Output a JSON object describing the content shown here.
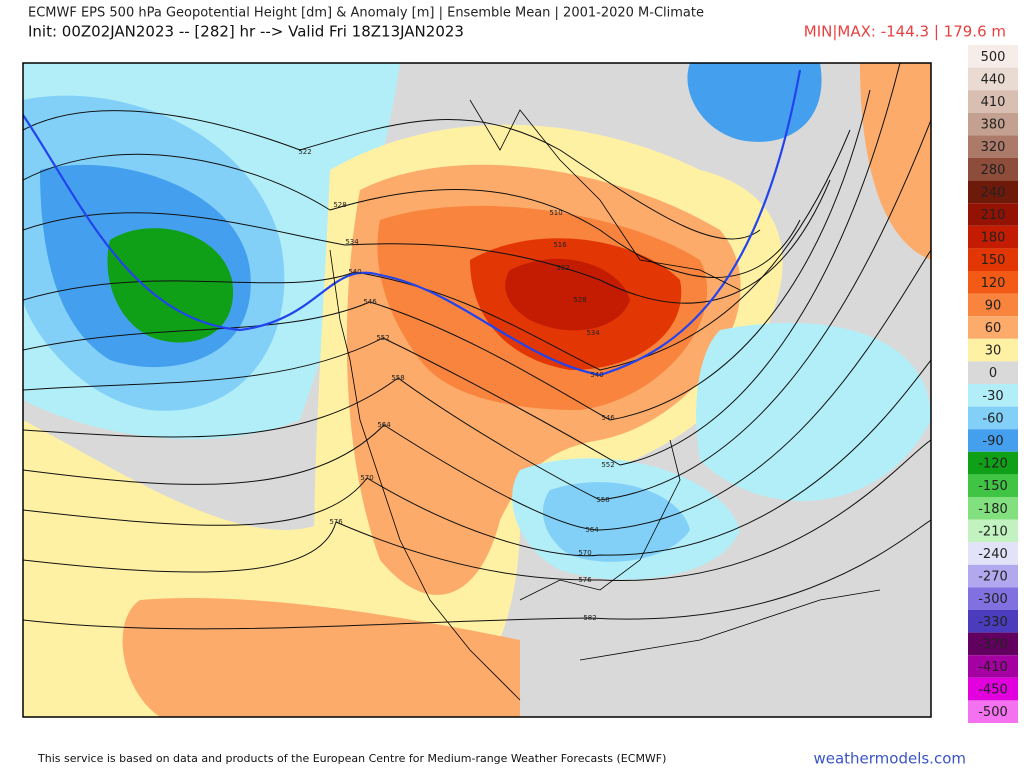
{
  "header": {
    "title": "ECMWF EPS 500 hPa Geopotential Height [dm] & Anomaly [m] | Ensemble Mean | 2001-2020 M-Climate",
    "init": "Init: 00Z02JAN2023 -- [282] hr --> Valid Fri 18Z13JAN2023",
    "minmax": "MIN|MAX: -144.3 | 179.6 m"
  },
  "colorbar": {
    "levels": [
      {
        "value": 500,
        "color": "#f6ede9"
      },
      {
        "value": 440,
        "color": "#e9dad2"
      },
      {
        "value": 410,
        "color": "#d8bfb2"
      },
      {
        "value": 380,
        "color": "#c4a090"
      },
      {
        "value": 320,
        "color": "#ac7a68"
      },
      {
        "value": 280,
        "color": "#8e4c3a"
      },
      {
        "value": 240,
        "color": "#6e1a0a"
      },
      {
        "value": 210,
        "color": "#931204"
      },
      {
        "value": 180,
        "color": "#c41c02"
      },
      {
        "value": 150,
        "color": "#e23604"
      },
      {
        "value": 120,
        "color": "#f25a16"
      },
      {
        "value": 90,
        "color": "#f8843e"
      },
      {
        "value": 60,
        "color": "#fcab6a"
      },
      {
        "value": 30,
        "color": "#fff1a4"
      },
      {
        "value": 0,
        "color": "#d9d9d9"
      },
      {
        "value": -30,
        "color": "#b2eef8"
      },
      {
        "value": -60,
        "color": "#82d0f8"
      },
      {
        "value": -90,
        "color": "#44a0ee"
      },
      {
        "value": -120,
        "color": "#10a018"
      },
      {
        "value": -150,
        "color": "#40c444"
      },
      {
        "value": -180,
        "color": "#82e07e"
      },
      {
        "value": -210,
        "color": "#c2f2c0"
      },
      {
        "value": -240,
        "color": "#e2e2f8"
      },
      {
        "value": -270,
        "color": "#b2a8f0"
      },
      {
        "value": -300,
        "color": "#8070e0"
      },
      {
        "value": -330,
        "color": "#4a3cbc"
      },
      {
        "value": -370,
        "color": "#620060"
      },
      {
        "value": -410,
        "color": "#a400a2"
      },
      {
        "value": -450,
        "color": "#e200de"
      },
      {
        "value": -500,
        "color": "#f472f0"
      }
    ]
  },
  "contour_labels": [
    "522",
    "528",
    "534",
    "540",
    "546",
    "552",
    "558",
    "564",
    "570",
    "576",
    "510",
    "516",
    "522",
    "528",
    "534",
    "540",
    "546",
    "552",
    "558",
    "564",
    "570",
    "576",
    "582"
  ],
  "footer": {
    "notice": "This service is based on data and products of the European Centre for Medium-range Weather Forecasts (ECMWF)",
    "brand": "weathermodels.com"
  }
}
